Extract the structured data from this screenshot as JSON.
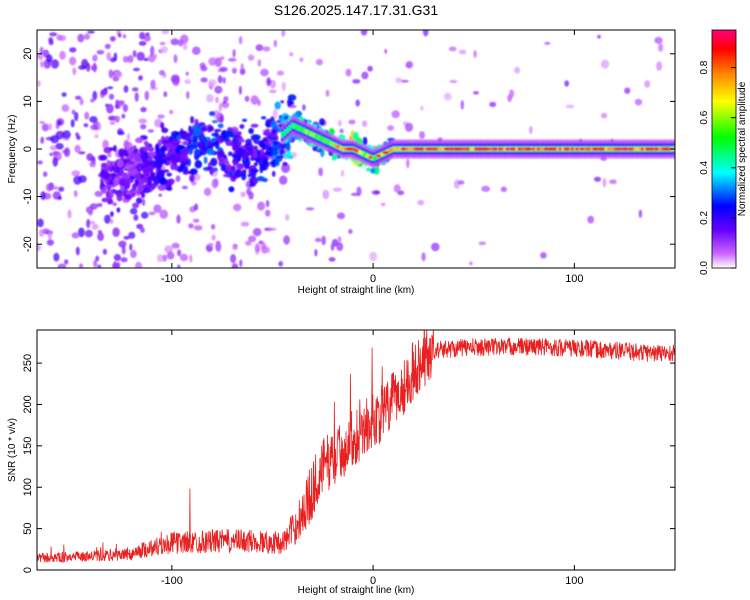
{
  "title": "S126.2025.147.17.31.G31",
  "chart_data": [
    {
      "type": "heatmap",
      "xlabel": "Height of straight line (km)",
      "ylabel": "Frequency (Hz)",
      "xlim": [
        -167,
        150
      ],
      "ylim": [
        -25,
        25
      ],
      "xticks": [
        -100,
        0,
        100
      ],
      "xtick_labels": [
        "-100",
        "0",
        "100"
      ],
      "yticks": [
        -20,
        -10,
        0,
        10,
        20
      ],
      "ytick_labels": [
        "-20",
        "-10",
        "0",
        "10",
        "20"
      ],
      "colorbar": {
        "label": "Normalized spectral amplitude",
        "range": [
          0,
          0.95
        ],
        "ticks": [
          0,
          0.2,
          0.4,
          0.6,
          0.8
        ],
        "tick_labels": [
          "0.0",
          "0.2",
          "0.4",
          "0.6",
          "0.8"
        ],
        "colors": [
          "#ffffff",
          "#cc66ff",
          "#6600ff",
          "#0000ff",
          "#00ffff",
          "#00ff00",
          "#ffff00",
          "#ff8000",
          "#ff0000",
          "#ff0080"
        ]
      },
      "ridge": {
        "x": [
          -130,
          -110,
          -100,
          -90,
          -80,
          -70,
          -60,
          -50,
          -40,
          -35,
          -30,
          -25,
          -20,
          -15,
          -10,
          -5,
          0,
          5,
          10,
          15,
          20,
          150
        ],
        "freq": [
          -6,
          -4,
          -2,
          1,
          1,
          -1,
          -2,
          1,
          5,
          4,
          3,
          2,
          1,
          0,
          0,
          -1,
          -2,
          -1,
          0,
          0,
          0,
          0
        ],
        "peak_amplitude": [
          0.2,
          0.25,
          0.3,
          0.35,
          0.35,
          0.3,
          0.3,
          0.35,
          0.5,
          0.55,
          0.55,
          0.55,
          0.6,
          0.8,
          0.85,
          0.6,
          0.55,
          0.6,
          0.7,
          0.75,
          0.8,
          0.8
        ]
      },
      "grid": false
    },
    {
      "type": "line",
      "xlabel": "Height of straight line (km)",
      "ylabel": "SNR (10 * v/v)",
      "xlim": [
        -167,
        150
      ],
      "ylim": [
        0,
        290
      ],
      "xticks": [
        -100,
        0,
        100
      ],
      "xtick_labels": [
        "-100",
        "0",
        "100"
      ],
      "yticks": [
        0,
        50,
        100,
        150,
        200,
        250
      ],
      "ytick_labels": [
        "0",
        "50",
        "100",
        "150",
        "200",
        "250"
      ],
      "color": "#e82020",
      "envelope": {
        "x": [
          -167,
          -140,
          -120,
          -110,
          -100,
          -80,
          -60,
          -45,
          -38,
          -32,
          -28,
          -25,
          -20,
          -15,
          -10,
          -5,
          0,
          5,
          10,
          15,
          20,
          25,
          30,
          40,
          60,
          80,
          100,
          120,
          140,
          150
        ],
        "y": [
          13,
          15,
          18,
          25,
          30,
          32,
          32,
          30,
          50,
          85,
          110,
          125,
          135,
          145,
          160,
          170,
          180,
          190,
          205,
          220,
          240,
          255,
          265,
          268,
          270,
          270,
          268,
          265,
          262,
          262
        ]
      },
      "grid": false
    }
  ]
}
